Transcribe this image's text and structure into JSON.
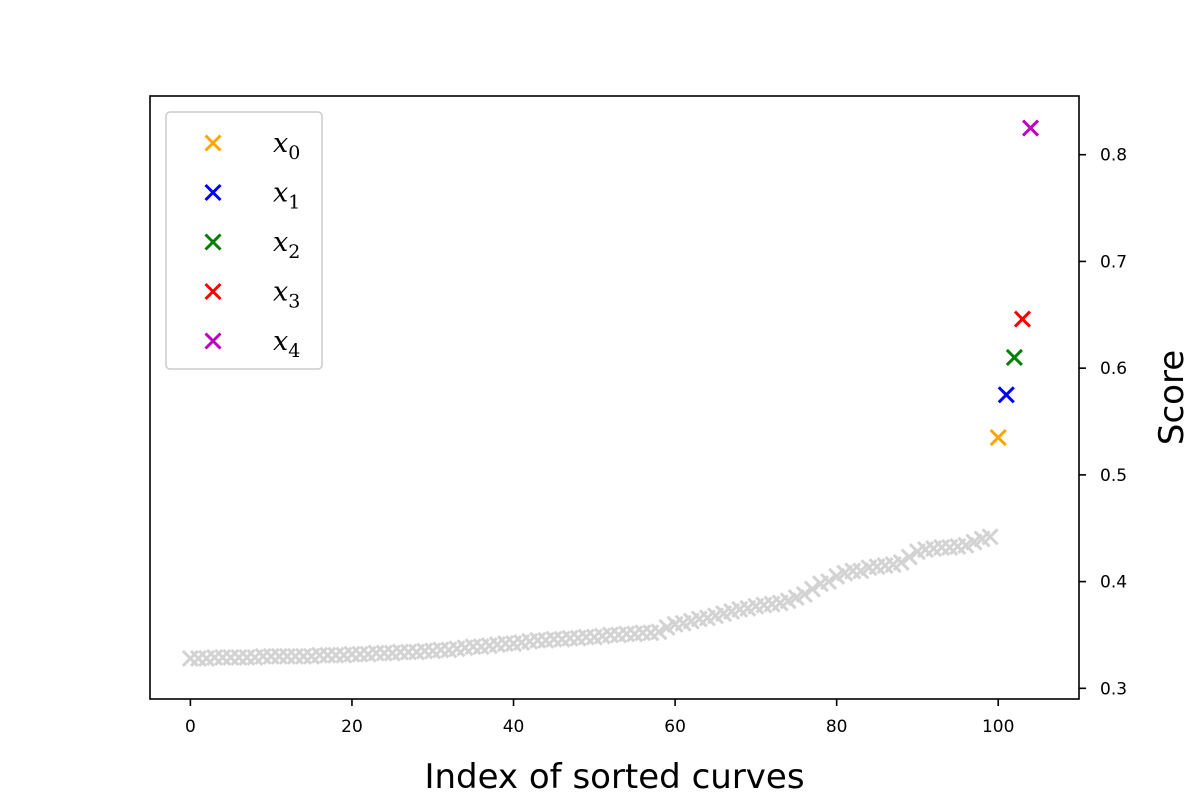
{
  "chart_data": {
    "type": "scatter",
    "title": "",
    "xlabel": "Index of sorted curves",
    "ylabel": "Score",
    "xlim": [
      -5,
      110
    ],
    "ylim": [
      0.29,
      0.855
    ],
    "xticks": [
      0,
      20,
      40,
      60,
      80,
      100
    ],
    "yticks": [
      0.3,
      0.4,
      0.5,
      0.6,
      0.7,
      0.8
    ],
    "y_axis_side": "right",
    "grid": false,
    "legend_position": "top-left",
    "marker": "x",
    "background_series": {
      "color": "#d3d3d3",
      "x": [
        0,
        1,
        2,
        3,
        4,
        5,
        6,
        7,
        8,
        9,
        10,
        11,
        12,
        13,
        14,
        15,
        16,
        17,
        18,
        19,
        20,
        21,
        22,
        23,
        24,
        25,
        26,
        27,
        28,
        29,
        30,
        31,
        32,
        33,
        34,
        35,
        36,
        37,
        38,
        39,
        40,
        41,
        42,
        43,
        44,
        45,
        46,
        47,
        48,
        49,
        50,
        51,
        52,
        53,
        54,
        55,
        56,
        57,
        58,
        59,
        60,
        61,
        62,
        63,
        64,
        65,
        66,
        67,
        68,
        69,
        70,
        71,
        72,
        73,
        74,
        75,
        76,
        77,
        78,
        79,
        80,
        81,
        82,
        83,
        84,
        85,
        86,
        87,
        88,
        89,
        90,
        91,
        92,
        93,
        94,
        95,
        96,
        97,
        98,
        99
      ],
      "y": [
        0.328,
        0.328,
        0.328,
        0.329,
        0.329,
        0.329,
        0.329,
        0.329,
        0.329,
        0.33,
        0.33,
        0.33,
        0.33,
        0.33,
        0.33,
        0.33,
        0.331,
        0.331,
        0.331,
        0.331,
        0.332,
        0.332,
        0.332,
        0.333,
        0.333,
        0.333,
        0.334,
        0.334,
        0.334,
        0.335,
        0.335,
        0.336,
        0.336,
        0.337,
        0.338,
        0.339,
        0.339,
        0.34,
        0.341,
        0.342,
        0.342,
        0.343,
        0.344,
        0.345,
        0.345,
        0.346,
        0.346,
        0.347,
        0.347,
        0.348,
        0.348,
        0.349,
        0.35,
        0.35,
        0.351,
        0.351,
        0.352,
        0.352,
        0.353,
        0.357,
        0.36,
        0.361,
        0.363,
        0.365,
        0.366,
        0.368,
        0.37,
        0.372,
        0.374,
        0.375,
        0.377,
        0.378,
        0.379,
        0.38,
        0.382,
        0.385,
        0.388,
        0.393,
        0.398,
        0.4,
        0.405,
        0.408,
        0.41,
        0.41,
        0.413,
        0.414,
        0.415,
        0.416,
        0.418,
        0.423,
        0.428,
        0.43,
        0.431,
        0.432,
        0.432,
        0.433,
        0.434,
        0.437,
        0.44,
        0.442
      ]
    },
    "series": [
      {
        "name": "x0",
        "label_base": "x",
        "label_sub": "0",
        "color": "#ffa500",
        "x": [
          100
        ],
        "y": [
          0.535
        ]
      },
      {
        "name": "x1",
        "label_base": "x",
        "label_sub": "1",
        "color": "#0000ff",
        "x": [
          101
        ],
        "y": [
          0.575
        ]
      },
      {
        "name": "x2",
        "label_base": "x",
        "label_sub": "2",
        "color": "#008000",
        "x": [
          102
        ],
        "y": [
          0.61
        ]
      },
      {
        "name": "x3",
        "label_base": "x",
        "label_sub": "3",
        "color": "#ff0000",
        "x": [
          103
        ],
        "y": [
          0.646
        ]
      },
      {
        "name": "x4",
        "label_base": "x",
        "label_sub": "4",
        "color": "#bf00bf",
        "x": [
          104
        ],
        "y": [
          0.825
        ]
      }
    ]
  }
}
